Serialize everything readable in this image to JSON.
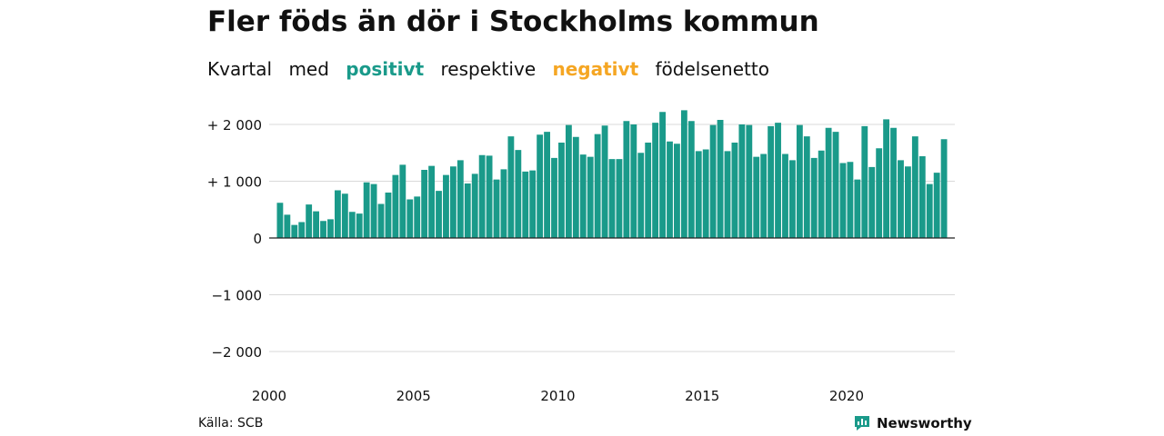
{
  "title": "Fler föds än dör i Stockholms kommun",
  "subtitle": {
    "part1": "Kvartal",
    "part2": "med",
    "positive": "positivt",
    "part3": "respektive",
    "negative": "negativt",
    "part4": "födelsenetto"
  },
  "colors": {
    "positive": "#1a9a8a",
    "negative": "#f5a623",
    "grid": "#d9d9d9",
    "text": "#111111"
  },
  "source": "Källa: SCB",
  "brand": "Newsworthy",
  "chart_data": {
    "type": "bar",
    "title": "Fler föds än dör i Stockholms kommun",
    "ylim": [
      -2200,
      2300
    ],
    "yticks": [
      {
        "value": 2000,
        "label": "+ 2 000"
      },
      {
        "value": 1000,
        "label": "+ 1 000"
      },
      {
        "value": 0,
        "label": "0"
      },
      {
        "value": -1000,
        "label": "−1 000"
      },
      {
        "value": -2000,
        "label": "−2 000"
      }
    ],
    "xlim": [
      2000.0,
      2023.75
    ],
    "xticks": [
      {
        "value": 2000,
        "label": "2000"
      },
      {
        "value": 2005,
        "label": "2005"
      },
      {
        "value": 2010,
        "label": "2010"
      },
      {
        "value": 2015,
        "label": "2015"
      },
      {
        "value": 2020,
        "label": "2020"
      }
    ],
    "grid": true,
    "start_year": 2000,
    "values": [
      0,
      620,
      410,
      230,
      280,
      590,
      470,
      300,
      330,
      840,
      780,
      460,
      430,
      980,
      950,
      600,
      800,
      1110,
      1290,
      680,
      730,
      1200,
      1270,
      830,
      1110,
      1260,
      1370,
      960,
      1130,
      1460,
      1450,
      1030,
      1210,
      1790,
      1550,
      1170,
      1190,
      1820,
      1870,
      1410,
      1680,
      1990,
      1780,
      1470,
      1430,
      1830,
      1980,
      1390,
      1390,
      2060,
      2000,
      1500,
      1680,
      2030,
      2220,
      1700,
      1660,
      2250,
      2060,
      1530,
      1560,
      1990,
      2080,
      1530,
      1680,
      2000,
      1990,
      1430,
      1480,
      1970,
      2030,
      1480,
      1370,
      1990,
      1790,
      1410,
      1540,
      1940,
      1870,
      1320,
      1340,
      1030,
      1970,
      1250,
      1580,
      2090,
      1940,
      1370,
      1260,
      1790,
      1440,
      950,
      1150,
      1740
    ]
  }
}
